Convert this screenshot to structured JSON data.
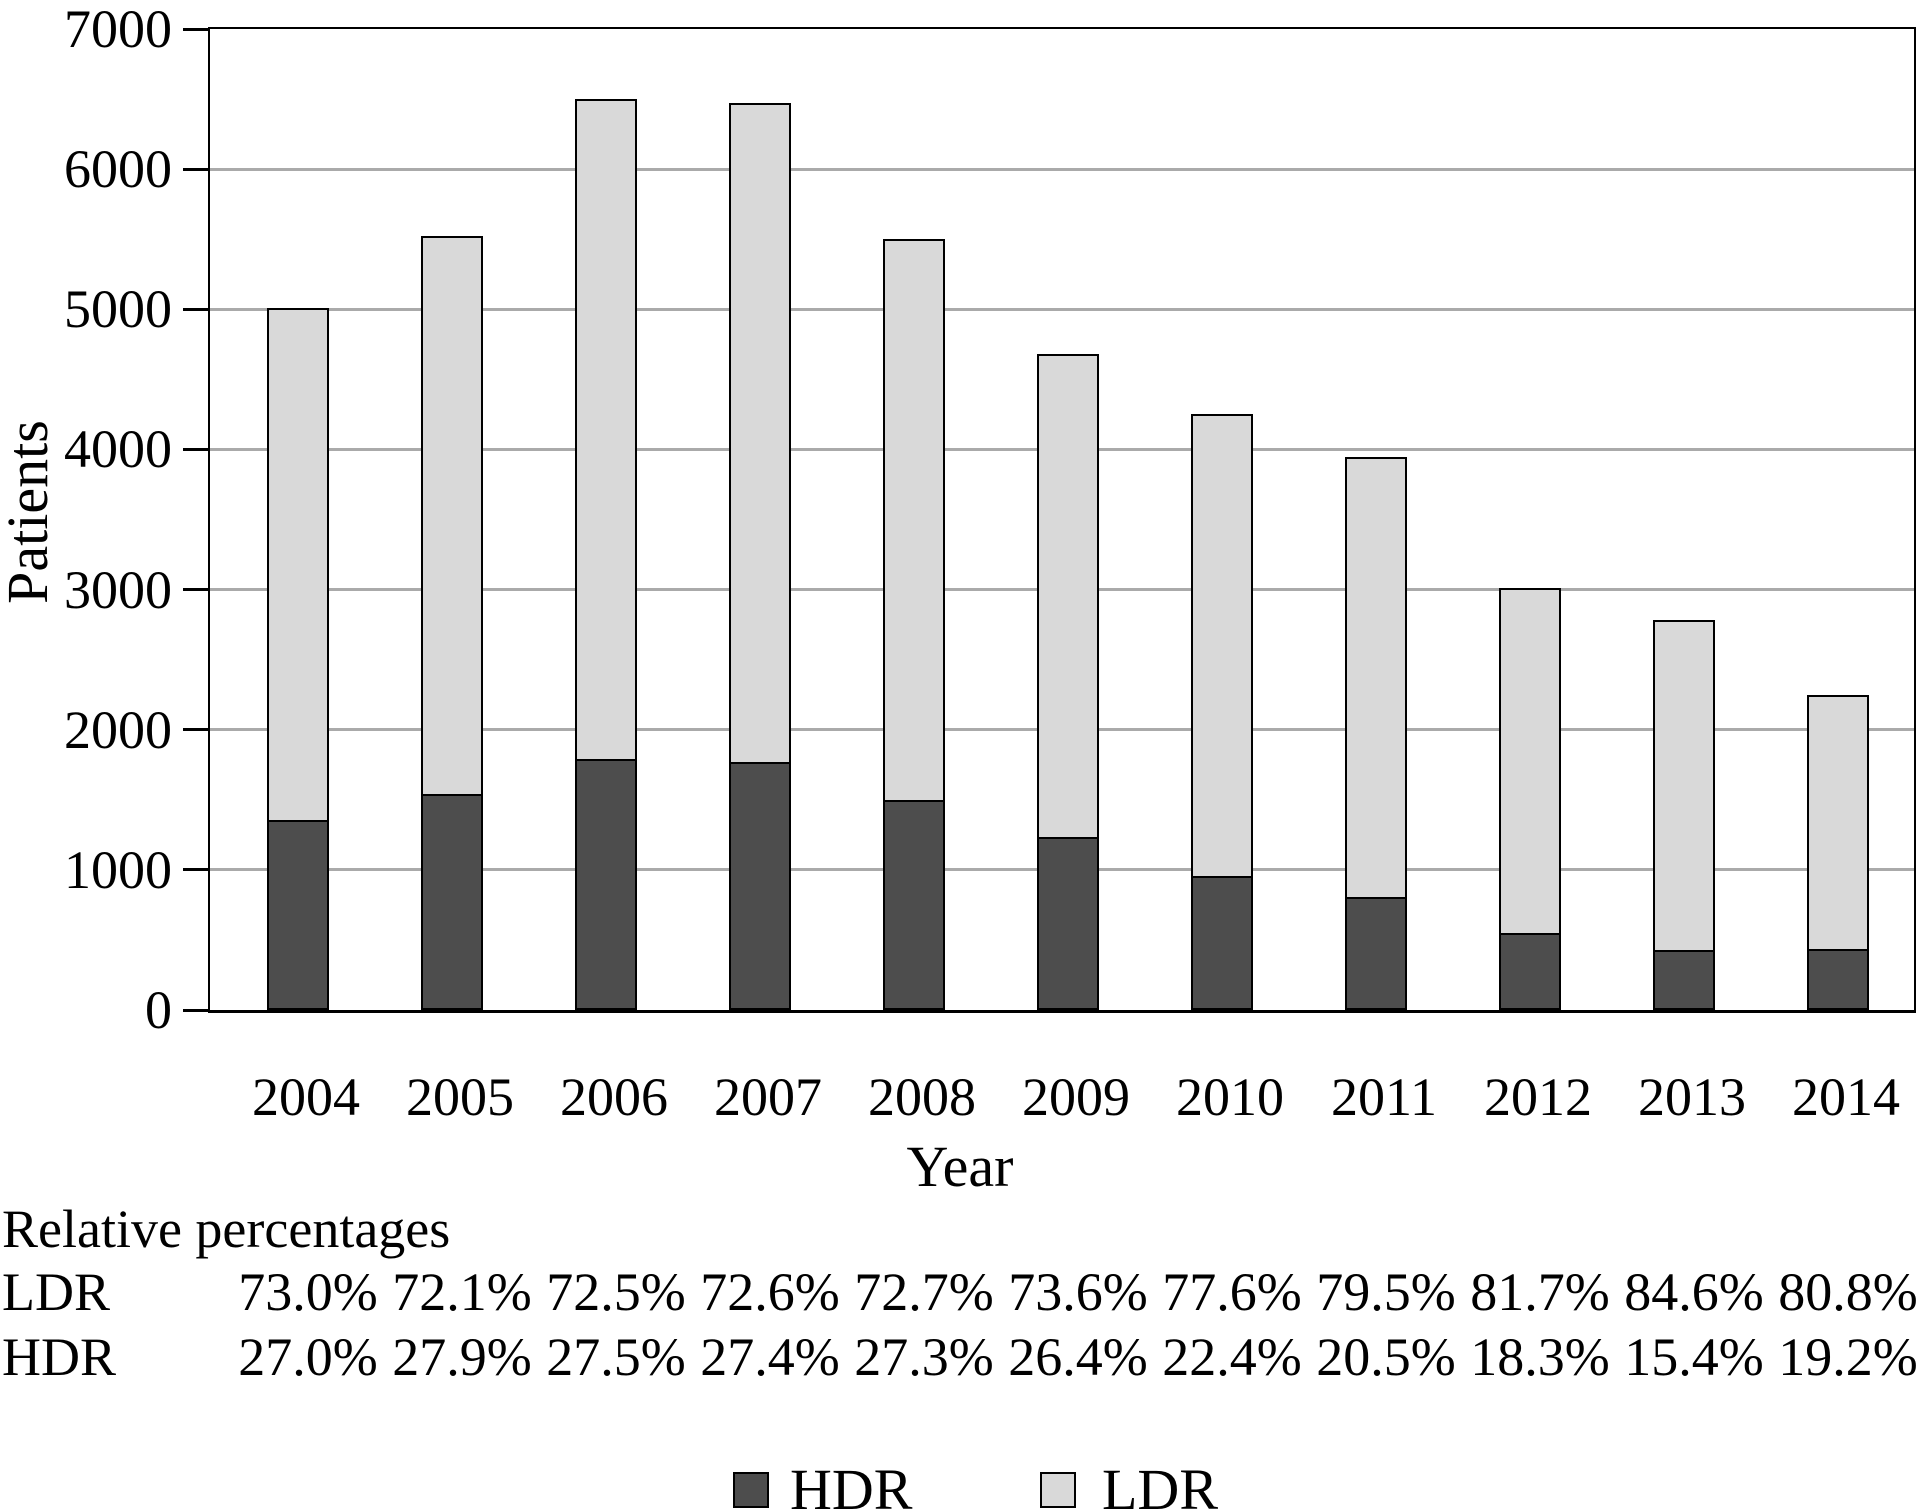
{
  "figure": {
    "y_axis": {
      "title": "Patients",
      "ticks": [
        0,
        1000,
        2000,
        3000,
        4000,
        5000,
        6000,
        7000
      ],
      "max": 7000
    },
    "x_axis": {
      "title": "Year"
    },
    "percent_block": {
      "title": "Relative percentages",
      "rows": [
        {
          "label": "LDR",
          "values": [
            "73.0%",
            "72.1%",
            "72.5%",
            "72.6%",
            "72.7%",
            "73.6%",
            "77.6%",
            "79.5%",
            "81.7%",
            "84.6%",
            "80.8%"
          ]
        },
        {
          "label": "HDR",
          "values": [
            "27.0%",
            "27.9%",
            "27.5%",
            "27.4%",
            "27.3%",
            "26.4%",
            "22.4%",
            "20.5%",
            "18.3%",
            "15.4%",
            "19.2%"
          ]
        }
      ]
    },
    "legend": [
      {
        "label": "HDR",
        "color": "#4d4d4d"
      },
      {
        "label": "LDR",
        "color": "#d9d9d9"
      }
    ],
    "colors": {
      "hdr_fill": "#4d4d4d",
      "ldr_fill": "#d9d9d9",
      "gridline": "#aaaaaa",
      "axis": "#000000"
    }
  },
  "chart_data": {
    "type": "bar",
    "stacked": true,
    "title": "",
    "xlabel": "Year",
    "ylabel": "Patients",
    "ylim": [
      0,
      7000
    ],
    "grid": true,
    "legend_position": "bottom",
    "categories": [
      "2004",
      "2005",
      "2006",
      "2007",
      "2008",
      "2009",
      "2010",
      "2011",
      "2012",
      "2013",
      "2014"
    ],
    "series": [
      {
        "name": "HDR",
        "color": "#4d4d4d",
        "values": [
          1353,
          1540,
          1788,
          1773,
          1502,
          1236,
          953,
          809,
          551,
          428,
          432
        ]
      },
      {
        "name": "LDR",
        "color": "#d9d9d9",
        "values": [
          3657,
          3980,
          4712,
          4697,
          3998,
          3444,
          3302,
          3136,
          2459,
          2352,
          1818
        ]
      }
    ],
    "totals": [
      5010,
      5520,
      6500,
      6470,
      5500,
      4680,
      4255,
      3945,
      3010,
      2780,
      2250
    ]
  }
}
